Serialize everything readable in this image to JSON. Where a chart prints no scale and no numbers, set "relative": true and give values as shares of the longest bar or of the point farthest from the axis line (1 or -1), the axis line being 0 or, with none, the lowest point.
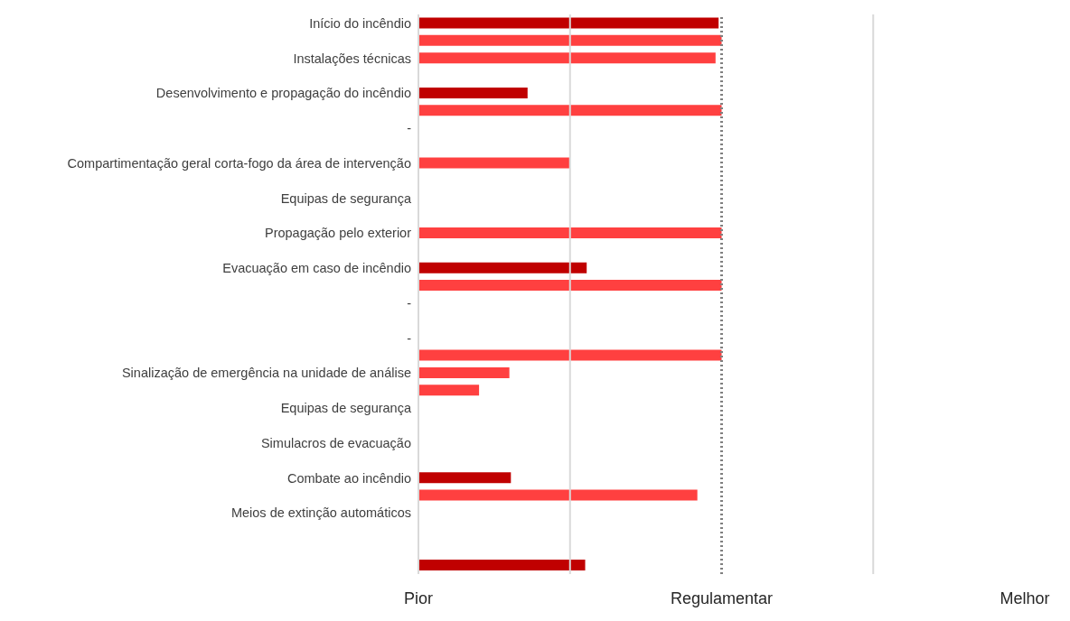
{
  "chart_data": {
    "type": "bar",
    "orientation": "horizontal",
    "relative": true,
    "categories": [
      "Início do incêndio",
      null,
      "Instalações técnicas",
      null,
      "Desenvolvimento e propagação do incêndio",
      null,
      "-",
      null,
      "Compartimentação geral corta-fogo da área de intervenção",
      null,
      "Equipas de segurança",
      null,
      "Propagação pelo exterior",
      null,
      "Evacuação em caso de incêndio",
      null,
      "-",
      null,
      "-",
      null,
      "Sinalização de emergência na unidade de análise",
      null,
      "Equipas de segurança",
      null,
      "Simulacros de evacuação",
      null,
      "Combate ao incêndio",
      null,
      "Meios de extinção automáticos",
      null,
      null,
      null
    ],
    "values": [
      0.99,
      1.0,
      0.98,
      null,
      0.36,
      1.0,
      null,
      null,
      0.5,
      null,
      null,
      null,
      1.0,
      null,
      0.555,
      1.0,
      null,
      null,
      null,
      1.0,
      0.3,
      0.2,
      null,
      null,
      null,
      null,
      0.305,
      0.92,
      null,
      null,
      null,
      0.55
    ],
    "colors": [
      "#c00000",
      "#ff4040",
      "#ff4040",
      "#ff4040",
      "#c00000",
      "#ff4040",
      "#ff4040",
      "#ff4040",
      "#ff4040",
      "#ff4040",
      "#ff4040",
      "#ff4040",
      "#ff4040",
      "#ff4040",
      "#c00000",
      "#ff4040",
      "#ff4040",
      "#ff4040",
      "#ff4040",
      "#ff4040",
      "#ff4040",
      "#ff4040",
      "#ff4040",
      "#ff4040",
      "#ff4040",
      "#ff4040",
      "#c00000",
      "#ff4040",
      "#ff4040",
      "#ff4040",
      "#ff4040",
      "#c00000"
    ],
    "annotations": [
      "Pior",
      "Regulamentar",
      "Melhor"
    ],
    "ref_lines": [
      {
        "axis": "x",
        "value": 0.5,
        "label": null,
        "color": "#d9d9d9",
        "line_style": "solid"
      },
      {
        "axis": "x",
        "value": 1,
        "label": null,
        "color": "#808080",
        "line_style": "dotted"
      },
      {
        "axis": "x",
        "value": 1.5,
        "label": null,
        "color": "#d9d9d9",
        "line_style": "solid"
      }
    ]
  }
}
